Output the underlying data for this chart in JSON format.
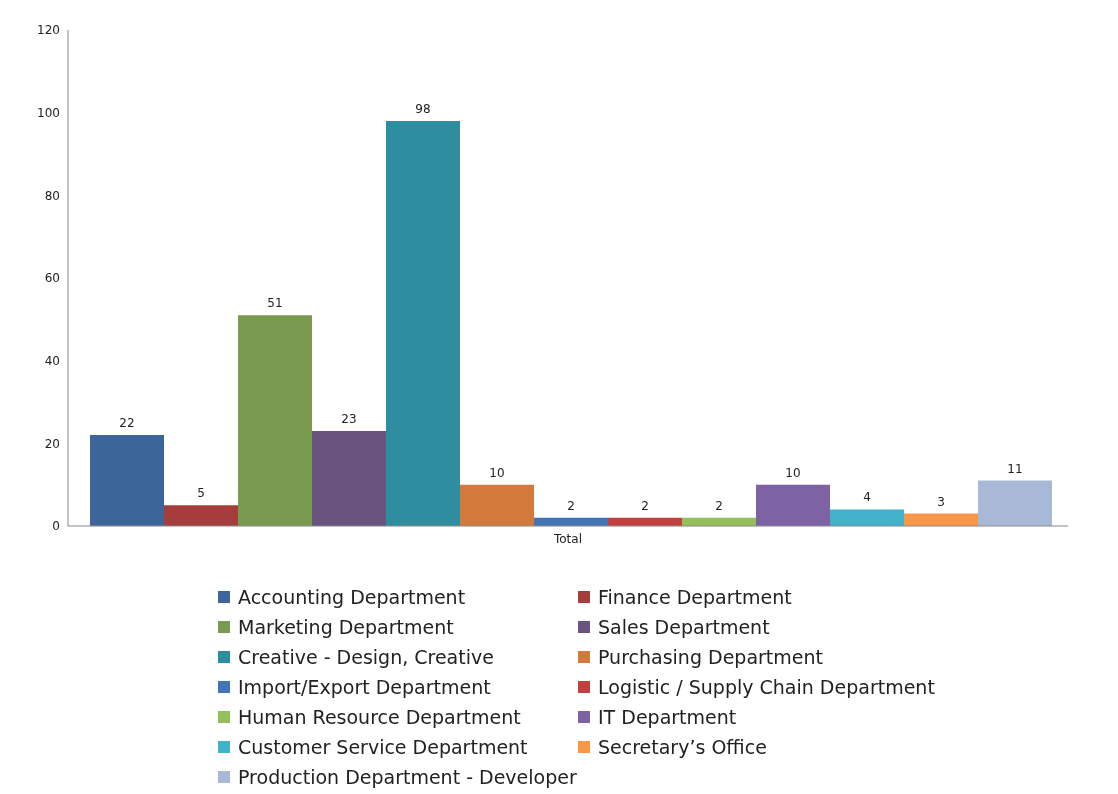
{
  "chart_data": {
    "type": "bar",
    "categories": [
      "Total"
    ],
    "series": [
      {
        "name": "Accounting Department",
        "color": "#3c6699",
        "values": [
          22
        ]
      },
      {
        "name": "Finance Department",
        "color": "#a43d3b",
        "values": [
          5
        ]
      },
      {
        "name": "Marketing Department",
        "color": "#7a9a4f",
        "values": [
          51
        ]
      },
      {
        "name": "Sales Department",
        "color": "#69537f",
        "values": [
          23
        ]
      },
      {
        "name": "Creative - Design, Creative",
        "color": "#2e8d9f",
        "values": [
          98
        ]
      },
      {
        "name": "Purchasing Department",
        "color": "#d27a3c",
        "values": [
          10
        ]
      },
      {
        "name": "Import/Export Department",
        "color": "#4275b8",
        "values": [
          2
        ]
      },
      {
        "name": "Logistic / Supply Chain Department",
        "color": "#c2413f",
        "values": [
          2
        ]
      },
      {
        "name": "Human Resource Department",
        "color": "#93c05b",
        "values": [
          2
        ]
      },
      {
        "name": "IT Department",
        "color": "#7e63a4",
        "values": [
          10
        ]
      },
      {
        "name": "Customer Service Department",
        "color": "#40b2ca",
        "values": [
          4
        ]
      },
      {
        "name": "Secretary’s Office",
        "color": "#f79747",
        "values": [
          3
        ]
      },
      {
        "name": "Production Department - Developer",
        "color": "#a7b9d7",
        "values": [
          11
        ]
      }
    ],
    "ylim": [
      0,
      120
    ],
    "yticks": [
      0,
      20,
      40,
      60,
      80,
      100,
      120
    ],
    "data_labels": true,
    "legend": "bottom",
    "grid": false
  }
}
